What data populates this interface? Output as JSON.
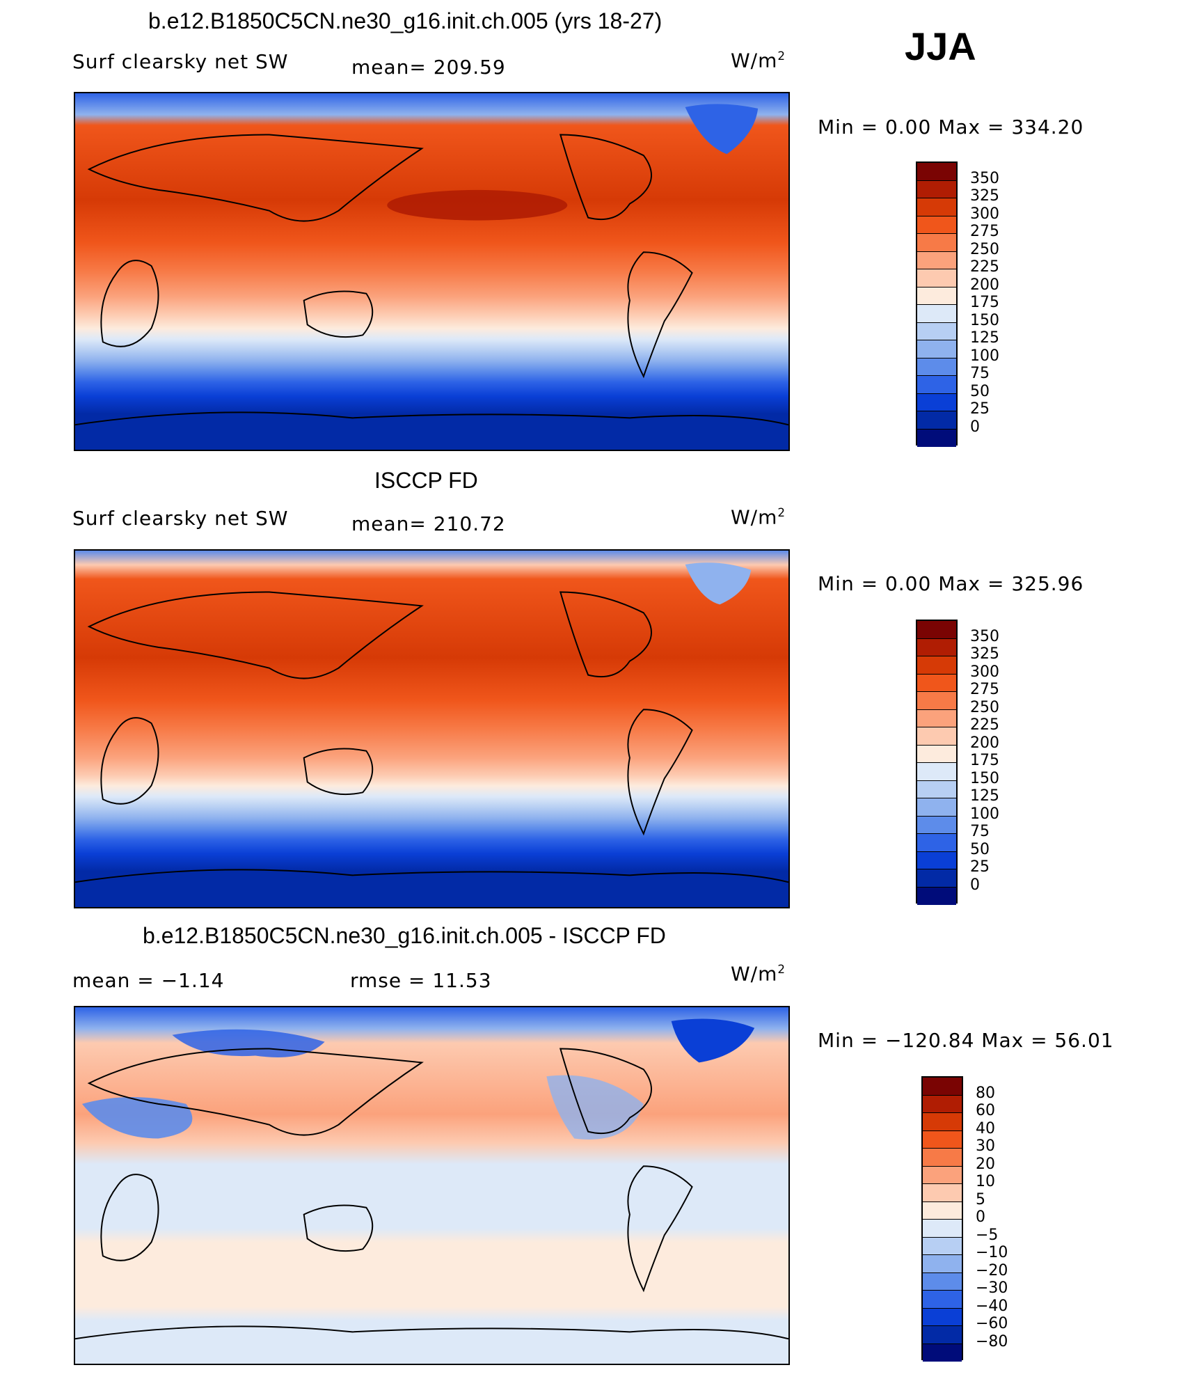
{
  "header": {
    "case_title": "b.e12.B1850C5CN.ne30_g16.init.ch.005 (yrs 18-27)",
    "season": "JJA"
  },
  "panels": [
    {
      "id": "model",
      "variable": "Surf clearsky net SW",
      "stat_text": "mean=  209.59",
      "units": "W/m",
      "units_sup": "2",
      "min_max_text": "Min  =     0.00 Max  =  334.20",
      "levels": [
        "350",
        "325",
        "300",
        "275",
        "250",
        "225",
        "200",
        "175",
        "150",
        "125",
        "100",
        "75",
        "50",
        "25",
        "0"
      ]
    },
    {
      "id": "obs",
      "panel_title": "ISCCP FD",
      "variable": "Surf clearsky net SW",
      "stat_text": "mean=  210.72",
      "units": "W/m",
      "units_sup": "2",
      "min_max_text": "Min  =     0.00 Max  =  325.96",
      "levels": [
        "350",
        "325",
        "300",
        "275",
        "250",
        "225",
        "200",
        "175",
        "150",
        "125",
        "100",
        "75",
        "50",
        "25",
        "0"
      ]
    },
    {
      "id": "diff",
      "panel_title": "b.e12.B1850C5CN.ne30_g16.init.ch.005 - ISCCP FD",
      "mean_text": "mean  =   −1.14",
      "rmse_text": "rmse  =    11.53",
      "units": "W/m",
      "units_sup": "2",
      "min_max_text": "Min  = −120.84 Max  =   56.01",
      "levels": [
        "80",
        "60",
        "40",
        "30",
        "20",
        "10",
        "5",
        "0",
        "−5",
        "−10",
        "−20",
        "−30",
        "−40",
        "−60",
        "−80"
      ]
    }
  ],
  "colors": {
    "abs_scale": [
      "#7a0403",
      "#b01d03",
      "#d63a06",
      "#f0561b",
      "#f77a47",
      "#fba27c",
      "#fdcab0",
      "#fdebdd",
      "#dde9f8",
      "#b7cff3",
      "#8fb2ee",
      "#5d8cea",
      "#2e63e6",
      "#0a3fd6",
      "#022aa6",
      "#000c7a"
    ],
    "diff_scale": [
      "#7a0403",
      "#b01d03",
      "#d63a06",
      "#f0561b",
      "#f77a47",
      "#fba27c",
      "#fdcab0",
      "#fdebdd",
      "#dde9f8",
      "#b7cff3",
      "#8fb2ee",
      "#5d8cea",
      "#2e63e6",
      "#0a3fd6",
      "#022aa6",
      "#000c7a"
    ]
  }
}
